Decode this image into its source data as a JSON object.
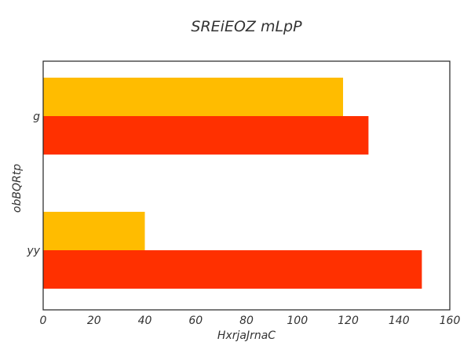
{
  "chart_data": {
    "type": "bar",
    "orientation": "horizontal",
    "title": "SREiEOZ mLpP",
    "xlabel": "HxrjaJrnaC",
    "ylabel": "obBQRtp",
    "categories": [
      "g",
      "yy"
    ],
    "series": [
      {
        "values": [
          118,
          40
        ],
        "color": "#FFBC00"
      },
      {
        "values": [
          128,
          149
        ],
        "color": "#FF3000"
      }
    ],
    "xlim": [
      0,
      160
    ],
    "xticks": [
      0,
      20,
      40,
      60,
      80,
      100,
      120,
      140,
      160
    ],
    "grid": false,
    "legend": "none"
  }
}
